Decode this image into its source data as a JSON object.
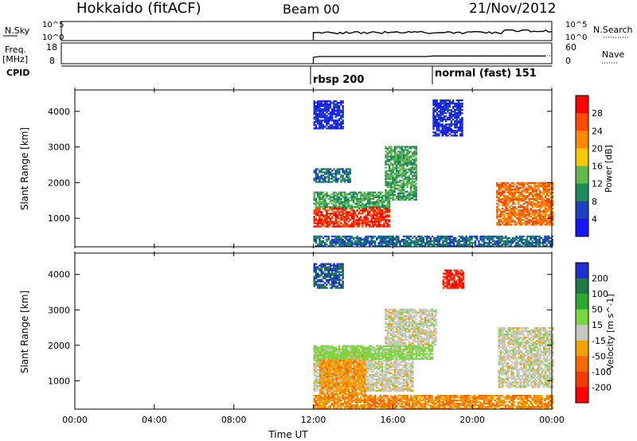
{
  "header": {
    "station": "Hokkaido (fitACF)",
    "beam": "Beam 00",
    "date": "21/Nov/2012"
  },
  "panels": {
    "nsky_label": "N.Sky",
    "nsky_ticks": [
      "10^5",
      "10^0"
    ],
    "nsearch_label": "N.Search",
    "nsearch_ticks": [
      "10^5",
      "10^0"
    ],
    "freq_label": "Freq.",
    "freq_unit": "[MHz]",
    "freq_ticks": [
      "18",
      "8"
    ],
    "nave_label": "Nave",
    "nave_ticks": [
      "60",
      "0"
    ],
    "cpid_label": "CPID",
    "cpid_modes": [
      {
        "name": "rbsp 200",
        "start": "12:00"
      },
      {
        "name": "normal (fast) 151",
        "start": "18:00"
      }
    ]
  },
  "axes": {
    "ylabel": "Slant Range [km]",
    "yticks": [
      "4000",
      "3000",
      "2000",
      "1000"
    ],
    "xticks": [
      "00:00",
      "04:00",
      "08:00",
      "12:00",
      "16:00",
      "20:00",
      "00:00"
    ],
    "xlabel": "Time UT"
  },
  "colorbars": {
    "power": {
      "label": "Power [dB]",
      "ticks": [
        "28",
        "24",
        "20",
        "16",
        "12",
        "8",
        "4"
      ],
      "colors": [
        "#ff0000",
        "#ff4a00",
        "#ff8a00",
        "#f5c800",
        "#62b84e",
        "#1f8a5a",
        "#1e3fbf",
        "#1616ff"
      ]
    },
    "velocity": {
      "label": "Velocity [m s^-1]",
      "ticks": [
        "200",
        "100",
        "50",
        "15",
        "-15",
        "-50",
        "-100",
        "-200"
      ],
      "colors": [
        "#1e2fd0",
        "#1f7a4a",
        "#2fa830",
        "#7ad640",
        "#c8c8c0",
        "#f5a000",
        "#f56a00",
        "#f53a00",
        "#ff0000"
      ]
    }
  },
  "chart_data": {
    "type": "heatmap",
    "title": "Hokkaido (fitACF)",
    "xlabel": "Time UT",
    "ylabel": "Slant Range [km]",
    "xlim": [
      "00:00",
      "24:00"
    ],
    "ylim": [
      200,
      4600
    ],
    "data_start": "12:00",
    "power_regions": [
      {
        "t": [
          12.0,
          15.8
        ],
        "range": [
          750,
          1300
        ],
        "level_dB": 28
      },
      {
        "t": [
          12.0,
          15.8
        ],
        "range": [
          1300,
          1750
        ],
        "level_dB": 12
      },
      {
        "t": [
          12.0,
          13.8
        ],
        "range": [
          2000,
          2400
        ],
        "level_dB": 8
      },
      {
        "t": [
          15.6,
          17.2
        ],
        "range": [
          1500,
          3000
        ],
        "level_dB": 12
      },
      {
        "t": [
          21.2,
          24.0
        ],
        "range": [
          800,
          2000
        ],
        "level_dB": 24
      },
      {
        "t": [
          12.0,
          24.0
        ],
        "range": [
          200,
          500
        ],
        "level_dB": 8
      },
      {
        "t": [
          12.0,
          13.5
        ],
        "range": [
          3500,
          4300
        ],
        "level_dB": 4
      },
      {
        "t": [
          18.0,
          19.5
        ],
        "range": [
          3300,
          4300
        ],
        "level_dB": 4
      }
    ],
    "velocity_regions": [
      {
        "t": [
          12.0,
          17.0
        ],
        "range": [
          700,
          1900
        ],
        "velocity": 0
      },
      {
        "t": [
          12.3,
          14.6
        ],
        "range": [
          600,
          1800
        ],
        "velocity": -40
      },
      {
        "t": [
          12.0,
          18.0
        ],
        "range": [
          1600,
          2000
        ],
        "velocity": 30
      },
      {
        "t": [
          15.6,
          18.2
        ],
        "range": [
          2000,
          3000
        ],
        "velocity": 0
      },
      {
        "t": [
          21.3,
          24.0
        ],
        "range": [
          800,
          2500
        ],
        "velocity": 0
      },
      {
        "t": [
          12.0,
          24.0
        ],
        "range": [
          200,
          600
        ],
        "velocity": -50
      },
      {
        "t": [
          12.0,
          13.5
        ],
        "range": [
          3600,
          4300
        ],
        "velocity": 200
      },
      {
        "t": [
          18.5,
          19.5
        ],
        "range": [
          3600,
          4100
        ],
        "velocity": -200
      }
    ]
  }
}
